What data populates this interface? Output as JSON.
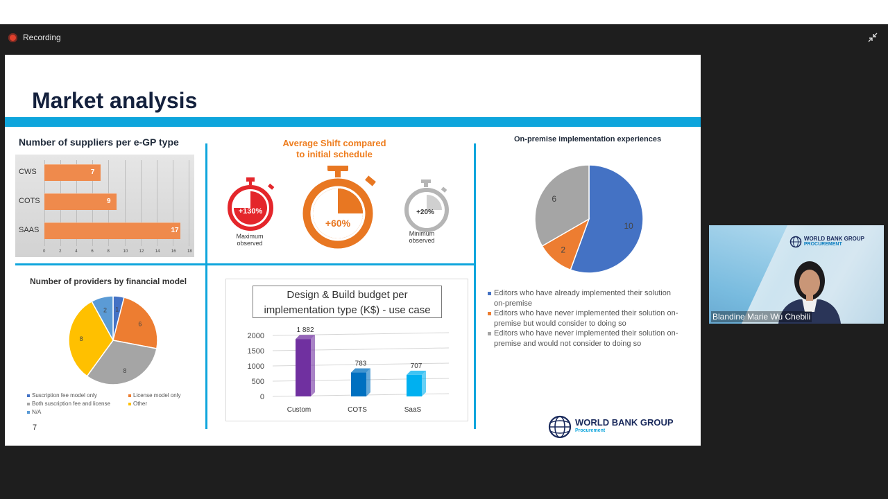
{
  "app": {
    "recording_label": "Recording",
    "collapse_icon": "collapse-icon"
  },
  "slide": {
    "title": "Market analysis",
    "page_number": "7",
    "logo_main": "WORLD BANK GROUP",
    "logo_sub": "Procurement"
  },
  "panel_suppliers": {
    "title": "Number of suppliers per e-GP type"
  },
  "panel_shift": {
    "title_line1": "Average Shift compared",
    "title_line2": "to initial schedule",
    "timers": [
      {
        "value": "+130%",
        "label_line1": "Maximum",
        "label_line2": "observed",
        "color": "#e4262b"
      },
      {
        "value": "+60%",
        "label_line1": "",
        "label_line2": "",
        "color": "#e87722"
      },
      {
        "value": "+20%",
        "label_line1": "Minimum",
        "label_line2": "observed",
        "color": "#b5b5b5"
      }
    ]
  },
  "panel_financial": {
    "title": "Number of providers by financial model",
    "legend": [
      {
        "label": "Suscription fee model only",
        "color": "#4472c4"
      },
      {
        "label": "License model only",
        "color": "#ed7d31"
      },
      {
        "label": "Both suscription fee and license",
        "color": "#a5a5a5"
      },
      {
        "label": "Other",
        "color": "#ffc000"
      },
      {
        "label": "N/A",
        "color": "#5b9bd5"
      }
    ]
  },
  "panel_budget": {
    "title_line1": "Design & Build budget per",
    "title_line2": "implementation type (K$) -  use case"
  },
  "panel_onprem": {
    "title": "On-premise implementation experiences",
    "legend": [
      {
        "label_line1": "Editors who have already implemented their solution",
        "label_line2": "on-premise",
        "color": "#4472c4"
      },
      {
        "label_line1": "Editors who have never implemented their solution on-",
        "label_line2": "premise but would consider to doing so",
        "color": "#ed7d31"
      },
      {
        "label_line1": "Editors who have never implemented their solution on-",
        "label_line2": "premise and would not consider to doing so",
        "color": "#a5a5a5"
      }
    ]
  },
  "video": {
    "participant_name": "Blandine Marie Wu Chebili",
    "logo_main": "WORLD BANK GROUP",
    "logo_sub": "PROCUREMENT"
  },
  "chart_data": [
    {
      "type": "bar",
      "orientation": "horizontal",
      "title": "Number of suppliers per e-GP type",
      "categories": [
        "CWS",
        "COTS",
        "SAAS"
      ],
      "values": [
        7,
        9,
        17
      ],
      "value_labels": [
        "7",
        "9",
        "17"
      ],
      "xlim": [
        0,
        18
      ],
      "x_ticks": [
        "0",
        "2",
        "4",
        "6",
        "8",
        "10",
        "12",
        "14",
        "16",
        "18"
      ],
      "color": "#ef8a4c",
      "grid": true
    },
    {
      "type": "pie",
      "title": "Number of providers by financial model",
      "labels": [
        "Suscription fee model only",
        "License model only",
        "Both suscription fee and license",
        "Other",
        "N/A"
      ],
      "values": [
        1,
        6,
        8,
        8,
        2
      ],
      "value_labels": [
        "1",
        "6",
        "8",
        "8",
        "2"
      ],
      "colors": [
        "#4472c4",
        "#ed7d31",
        "#a5a5a5",
        "#ffc000",
        "#5b9bd5"
      ],
      "legend": "bottom"
    },
    {
      "type": "bar",
      "title": "Design & Build budget per implementation type (K$) -  use case",
      "categories": [
        "Custom",
        "COTS",
        "SaaS"
      ],
      "values": [
        1882,
        783,
        707
      ],
      "value_labels": [
        "1 882",
        "783",
        "707"
      ],
      "ylim": [
        0,
        2000
      ],
      "y_ticks": [
        "0",
        "500",
        "1000",
        "1500",
        "2000"
      ],
      "colors": [
        "#7030a0",
        "#0070c0",
        "#00b0f0"
      ]
    },
    {
      "type": "pie",
      "title": "On-premise implementation experiences",
      "labels": [
        "Editors who have already implemented their solution on-premise",
        "Editors who have never implemented their solution on-premise but would consider to doing so",
        "Editors who have never implemented their solution on-premise and would not consider to doing so"
      ],
      "values": [
        10,
        2,
        6
      ],
      "value_labels": [
        "10",
        "2",
        "6"
      ],
      "colors": [
        "#4472c4",
        "#ed7d31",
        "#a5a5a5"
      ],
      "legend": "bottom"
    }
  ]
}
